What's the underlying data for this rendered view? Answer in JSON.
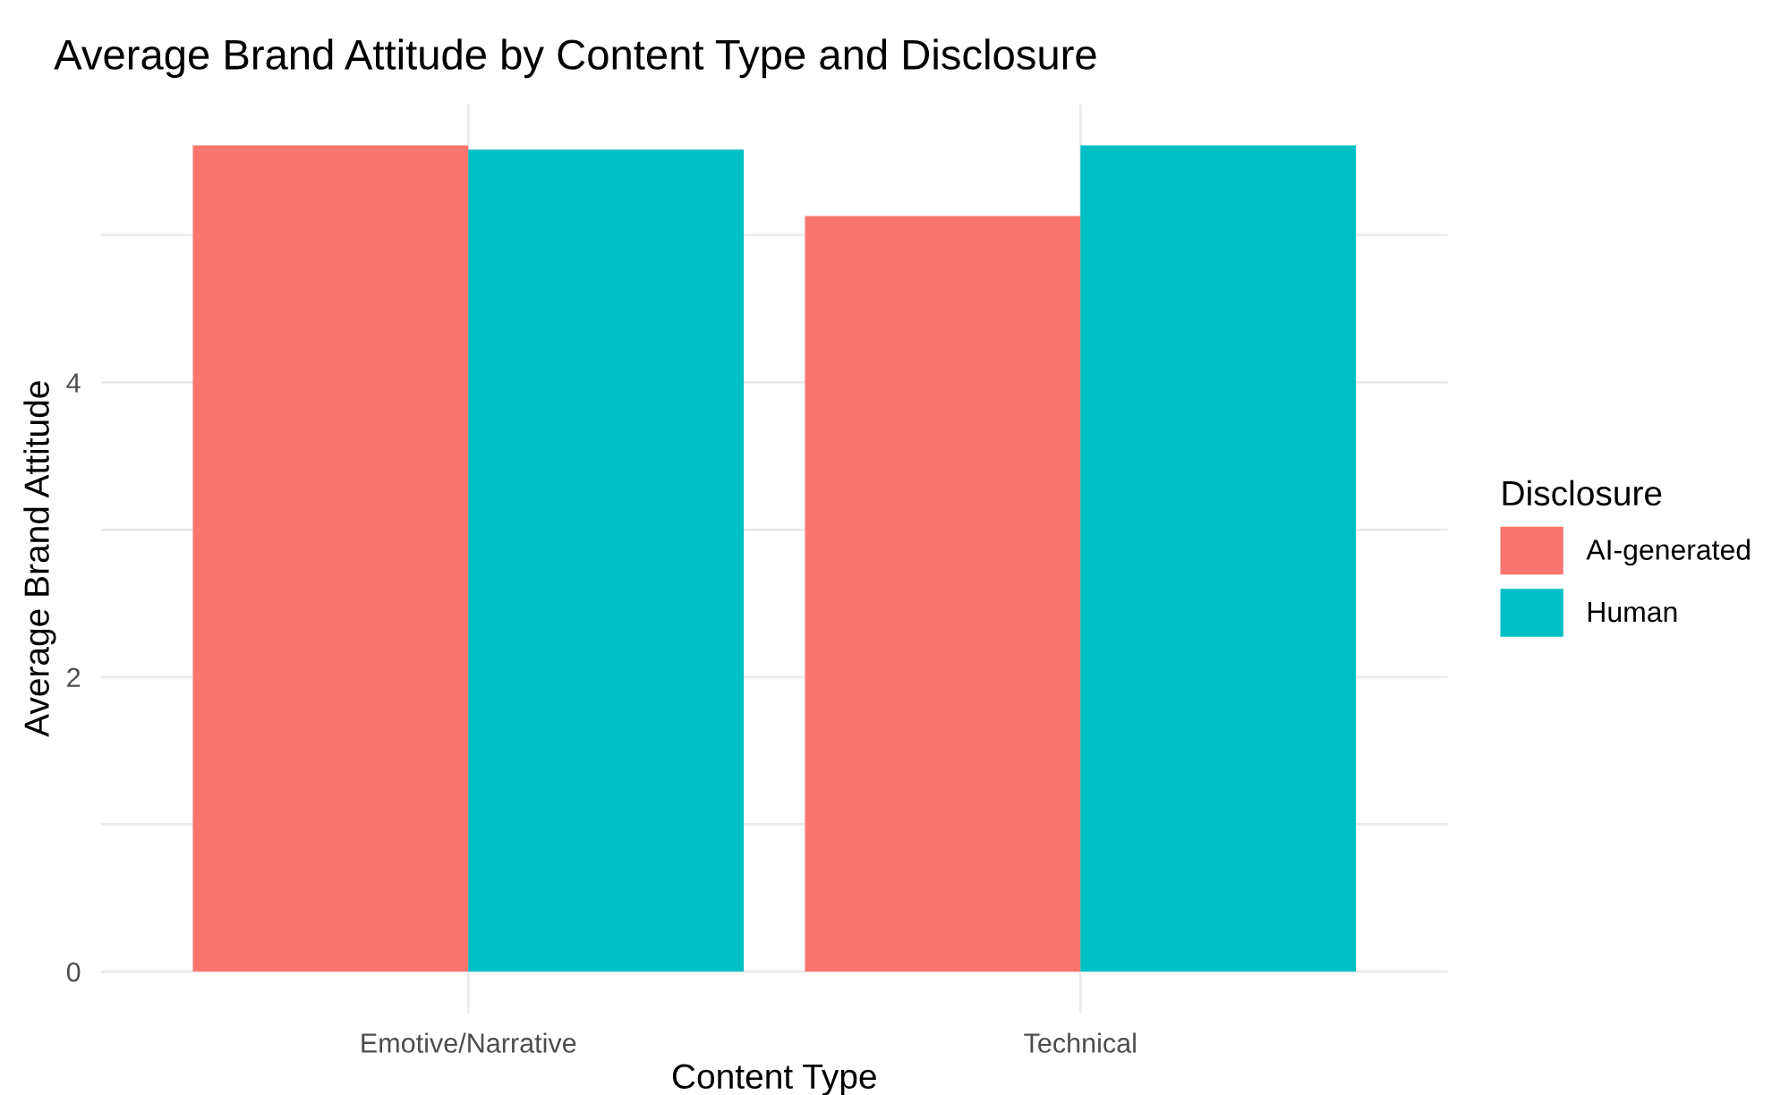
{
  "chart_data": {
    "type": "bar",
    "title": "Average Brand Attitude by Content Type and Disclosure",
    "xlabel": "Content Type",
    "ylabel": "Average Brand Attitude",
    "legend_title": "Disclosure",
    "categories": [
      "Emotive/Narrative",
      "Technical"
    ],
    "series": [
      {
        "name": "AI-generated",
        "color": "#f8766d",
        "values": [
          5.61,
          5.13
        ]
      },
      {
        "name": "Human",
        "color": "#00bfc4",
        "values": [
          5.58,
          5.61
        ]
      }
    ],
    "ylim": [
      -0.28,
      5.89
    ],
    "yticks": [
      0,
      {
        "value": 1,
        "label": null
      },
      2,
      {
        "value": 3,
        "label": null
      },
      4,
      {
        "value": 5,
        "label": null
      }
    ],
    "grid": true,
    "legend": "right"
  }
}
